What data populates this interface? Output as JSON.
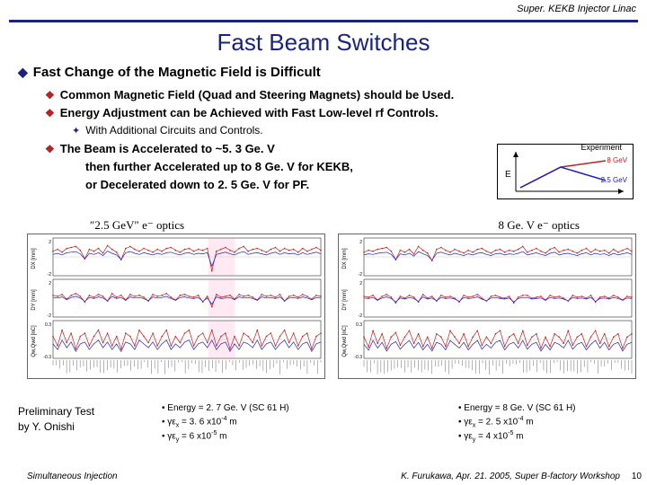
{
  "header": "Super. KEKB Injector Linac",
  "title": "Fast Beam Switches",
  "main_bullet": "Fast Change of the Magnetic Field is Difficult",
  "sub_bullets": [
    "Common Magnetic Field (Quad and Steering Magnets) should be Used.",
    "Energy Adjustment can be Achieved with Fast Low-level rf Controls.",
    "The Beam is Accelerated to ~5. 3 Ge. V"
  ],
  "sub2_bullet": "With Additional Circuits and Controls.",
  "accel_lines": [
    "then further Accelerated up to 8 Ge. V for KEKB,",
    "or Decelerated down to 2. 5 Ge. V for PF."
  ],
  "diagram": {
    "top_label": "Experiment",
    "e_label": "E",
    "out1": "8 GeV",
    "out2": "2.5 GeV"
  },
  "chart_titles": {
    "left": "″2.5 GeV″ e⁻ optics",
    "right": "8 Ge. V e⁻ optics"
  },
  "charts": {
    "panel_labels": [
      "DX [mm]",
      "DY [mm]",
      "Qw,Qwd [nC]"
    ],
    "left": {
      "dx_ylim": [
        -2,
        2
      ],
      "dy_ylim": [
        -2,
        2
      ],
      "q_ylim": [
        -0.3,
        0.3
      ],
      "dx": [
        0.6,
        0.8,
        0.5,
        0.9,
        1.0,
        1.1,
        0.7,
        -0.2,
        0.8,
        0.6,
        0.9,
        0.4,
        1.2,
        0.8,
        0.5,
        -0.3,
        0.9,
        1.1,
        0.8,
        0.6,
        0.9,
        0.7,
        0.5,
        0.8,
        0.6,
        0.9,
        1.0,
        0.7,
        0.5,
        0.8,
        0.9,
        0.6,
        0.8,
        0.7,
        0.9,
        -1.5,
        0.6,
        0.8,
        1.0,
        0.7,
        0.5,
        0.9,
        1.1,
        0.6,
        0.8,
        0.9,
        0.7,
        0.5,
        0.8,
        1.0,
        0.6,
        0.9,
        0.7,
        0.8,
        0.5,
        0.9,
        0.6,
        0.8,
        1.0,
        0.7
      ],
      "dy": [
        0.3,
        0.2,
        0.4,
        -0.1,
        0.3,
        0.5,
        0.2,
        -0.4,
        0.3,
        0.1,
        0.4,
        0.2,
        -0.3,
        0.5,
        0.1,
        0.3,
        -0.2,
        0.4,
        0.2,
        0.3,
        0.1,
        -0.3,
        0.4,
        0.2,
        0.3,
        0.5,
        0.1,
        -0.2,
        0.3,
        0.4,
        0.2,
        0.1,
        0.3,
        -0.4,
        0.2,
        -0.9,
        0.4,
        0.1,
        0.2,
        0.3,
        -0.1,
        0.4,
        0.2,
        0.3,
        0.1,
        -0.2,
        0.4,
        0.2,
        0.3,
        0.1,
        0.4,
        -0.3,
        0.2,
        0.3,
        0.1,
        0.4,
        0.2,
        -0.1,
        0.3,
        0.2
      ],
      "q": [
        0.05,
        -0.1,
        0.15,
        -0.05,
        0.1,
        -0.15,
        0.05,
        0.1,
        -0.1,
        0.05,
        0.15,
        -0.05,
        0.1,
        -0.1,
        0.05,
        -0.15,
        0.1,
        0.05,
        -0.1,
        0.15,
        0.05,
        -0.05,
        0.1,
        -0.1,
        0.05,
        0.15,
        -0.1,
        0.05,
        -0.05,
        0.1,
        0.15,
        -0.1,
        0.05,
        0.1,
        -0.05,
        0.15,
        -0.1,
        0.05,
        0.1,
        -0.15,
        0.05,
        -0.1,
        0.1,
        0.05,
        -0.05,
        0.15,
        -0.1,
        0.05,
        0.1,
        -0.1,
        0.05,
        0.15,
        -0.05,
        0.1,
        -0.1,
        0.05,
        0.1,
        -0.15,
        0.05,
        0.1
      ],
      "pink_region": [
        0.58,
        0.68
      ]
    },
    "right": {
      "dx_ylim": [
        -2,
        2
      ],
      "dy_ylim": [
        -2,
        2
      ],
      "q_ylim": [
        -0.3,
        0.3
      ],
      "dx": [
        0.5,
        0.7,
        0.6,
        0.8,
        0.9,
        1.0,
        0.6,
        -0.3,
        0.7,
        0.5,
        0.8,
        0.3,
        1.1,
        0.7,
        0.4,
        -0.4,
        0.8,
        1.0,
        0.7,
        0.5,
        0.8,
        0.6,
        0.4,
        0.7,
        0.5,
        0.8,
        0.9,
        0.6,
        0.4,
        0.7,
        0.8,
        0.5,
        0.7,
        0.6,
        0.8,
        1.1,
        0.5,
        0.7,
        0.9,
        0.6,
        0.4,
        0.8,
        1.0,
        0.5,
        0.7,
        0.8,
        0.6,
        0.4,
        0.7,
        0.9,
        0.5,
        0.8,
        0.6,
        0.7,
        0.4,
        0.8,
        0.5,
        0.7,
        0.9,
        0.6
      ],
      "dy": [
        0.2,
        0.1,
        0.3,
        -0.2,
        0.2,
        0.4,
        0.1,
        -0.5,
        0.2,
        0.0,
        0.3,
        0.1,
        -0.4,
        0.4,
        0.0,
        0.2,
        -0.3,
        0.3,
        0.1,
        0.2,
        0.0,
        -0.4,
        0.3,
        0.1,
        0.2,
        0.4,
        0.0,
        -0.3,
        0.2,
        0.3,
        0.1,
        0.0,
        0.2,
        -0.5,
        0.1,
        0.3,
        0.3,
        0.0,
        0.1,
        0.2,
        -0.2,
        0.3,
        0.1,
        0.2,
        0.0,
        -0.3,
        0.3,
        0.1,
        0.2,
        0.0,
        0.3,
        -0.4,
        0.1,
        0.2,
        0.0,
        0.3,
        0.1,
        -0.2,
        0.2,
        0.1
      ],
      "q": [
        0.04,
        -0.12,
        0.14,
        -0.06,
        0.09,
        -0.14,
        0.04,
        0.11,
        -0.09,
        0.04,
        0.14,
        -0.06,
        0.09,
        -0.11,
        0.04,
        -0.14,
        0.09,
        0.04,
        -0.11,
        0.14,
        0.04,
        -0.06,
        0.09,
        -0.11,
        0.04,
        0.14,
        -0.09,
        0.04,
        -0.06,
        0.09,
        0.14,
        -0.11,
        0.04,
        0.09,
        -0.06,
        0.14,
        -0.09,
        0.04,
        0.09,
        -0.14,
        0.04,
        -0.11,
        0.09,
        0.04,
        -0.06,
        0.14,
        -0.09,
        0.04,
        0.09,
        -0.11,
        0.04,
        0.14,
        -0.06,
        0.09,
        -0.11,
        0.04,
        0.09,
        -0.14,
        0.04,
        0.09
      ]
    },
    "colors": {
      "line1": "#c02020",
      "line2": "#2020c0",
      "grid": "#cccccc",
      "axis": "#000000"
    }
  },
  "prelim": {
    "l1": "Preliminary Test",
    "l2": "by Y. Onishi"
  },
  "params_left": [
    "• Energy = 2. 7 Ge. V (SC 61 H)",
    "• γε<sub>x</sub> = 3. 6 x10<sup>-4</sup> m",
    "• γε<sub>y</sub> = 6 x10<sup>-5</sup> m"
  ],
  "params_right": [
    "• Energy = 8 Ge. V (SC 61 H)",
    "• γε<sub>x</sub> = 2. 5 x10<sup>-4</sup> m",
    "• γε<sub>y</sub> = 4 x10<sup>-5</sup> m"
  ],
  "footer": {
    "left": "Simultaneous Injection",
    "right": "K. Furukawa, Apr. 21. 2005, Super B-factory Workshop",
    "num": "10"
  }
}
